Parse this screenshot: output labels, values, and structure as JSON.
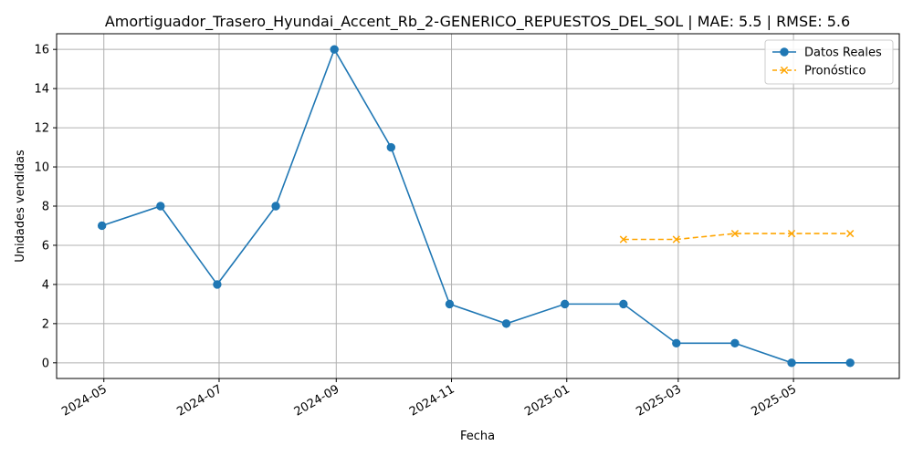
{
  "chart_data": {
    "type": "line",
    "title": "Amortiguador_Trasero_Hyundai_Accent_Rb_2-GENERICO_REPUESTOS_DEL_SOL | MAE: 5.5 | RMSE: 5.6",
    "xlabel": "Fecha",
    "ylabel": "Unidades vendidas",
    "x_ticks": [
      "2024-05",
      "2024-07",
      "2024-09",
      "2024-11",
      "2025-01",
      "2025-03",
      "2025-05"
    ],
    "y_ticks": [
      0,
      2,
      4,
      6,
      8,
      10,
      12,
      14,
      16
    ],
    "xlim": [
      "2024-04-06",
      "2025-06-26"
    ],
    "ylim": [
      -0.8,
      16.8
    ],
    "grid": true,
    "legend_position": "top-right",
    "series": [
      {
        "name": "Datos Reales",
        "color": "#1f77b4",
        "line_style": "solid",
        "marker": "circle",
        "points": [
          {
            "x": "2024-04-30",
            "y": 7
          },
          {
            "x": "2024-05-31",
            "y": 8
          },
          {
            "x": "2024-06-30",
            "y": 4
          },
          {
            "x": "2024-07-31",
            "y": 8
          },
          {
            "x": "2024-08-31",
            "y": 16
          },
          {
            "x": "2024-09-30",
            "y": 11
          },
          {
            "x": "2024-10-31",
            "y": 3
          },
          {
            "x": "2024-11-30",
            "y": 2
          },
          {
            "x": "2024-12-31",
            "y": 3
          },
          {
            "x": "2025-01-31",
            "y": 3
          },
          {
            "x": "2025-02-28",
            "y": 1
          },
          {
            "x": "2025-03-31",
            "y": 1
          },
          {
            "x": "2025-04-30",
            "y": 0
          },
          {
            "x": "2025-05-31",
            "y": 0
          }
        ]
      },
      {
        "name": "Pronóstico",
        "color": "#ffa500",
        "line_style": "dashed",
        "marker": "x",
        "points": [
          {
            "x": "2025-01-31",
            "y": 6.3
          },
          {
            "x": "2025-02-28",
            "y": 6.3
          },
          {
            "x": "2025-03-31",
            "y": 6.6
          },
          {
            "x": "2025-04-30",
            "y": 6.6
          },
          {
            "x": "2025-05-31",
            "y": 6.6
          }
        ]
      }
    ]
  }
}
